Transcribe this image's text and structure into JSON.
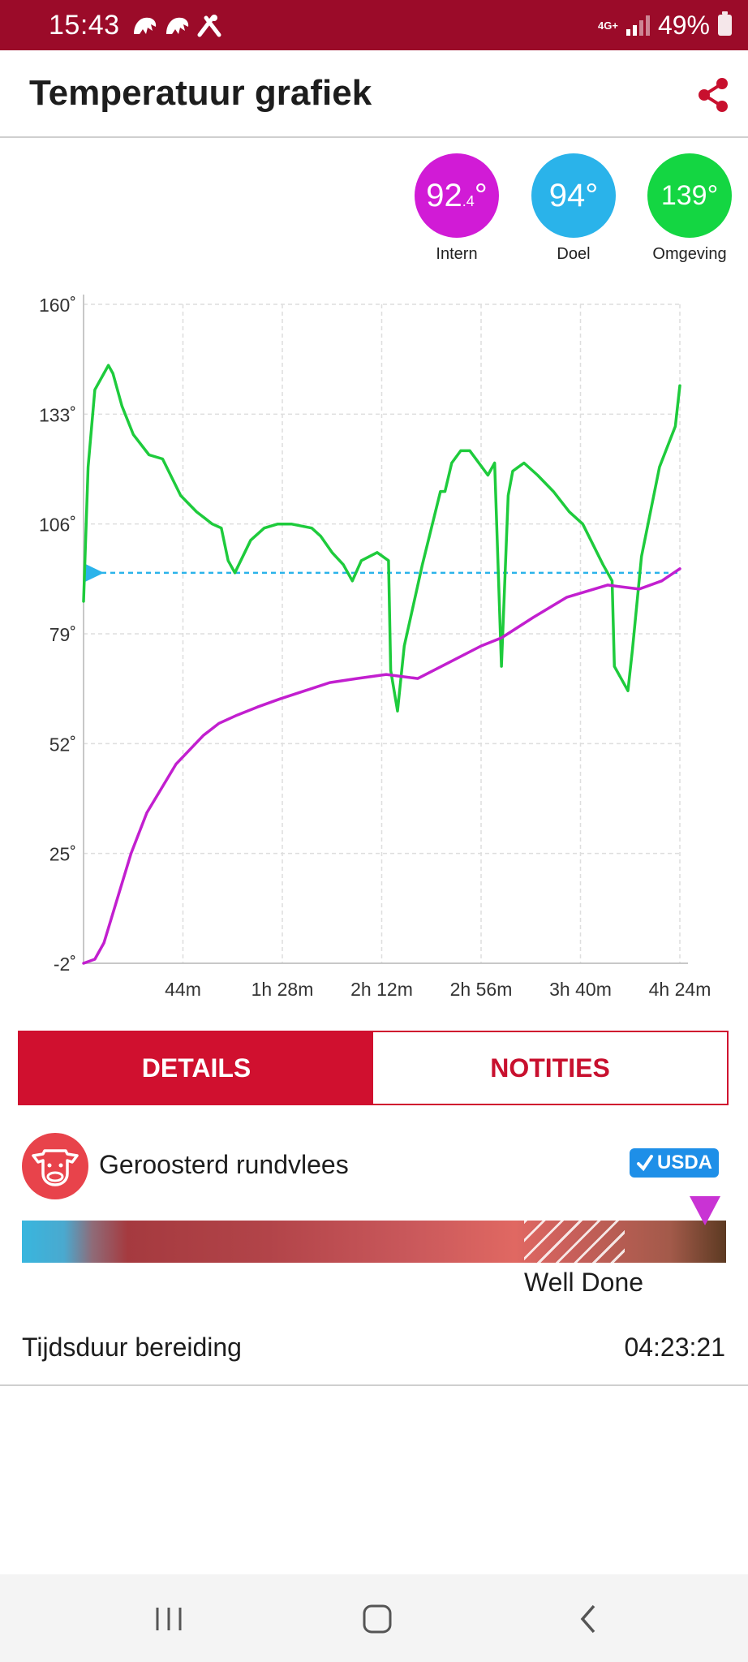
{
  "status_bar": {
    "time": "15:43",
    "network": "4G+",
    "battery": "49%",
    "bg_color": "#9b0b29"
  },
  "header": {
    "title": "Temperatuur grafiek",
    "share_icon": "share-icon",
    "accent": "#c8102e"
  },
  "readings": [
    {
      "main": "92",
      "sub": ".4",
      "unit": "°",
      "label": "Intern",
      "color": "#d11bd6"
    },
    {
      "main": "94",
      "sub": "",
      "unit": "°",
      "label": "Doel",
      "color": "#2ab3ea"
    },
    {
      "main": "139",
      "sub": "",
      "unit": "°",
      "label": "Omgeving",
      "color": "#14d642"
    }
  ],
  "chart_data": {
    "type": "line",
    "y_ticks": [
      "160˚",
      "133˚",
      "106˚",
      "79˚",
      "52˚",
      "25˚",
      "-2˚"
    ],
    "x_ticks": [
      "44m",
      "1h 28m",
      "2h 12m",
      "2h 56m",
      "3h 40m",
      "4h 24m"
    ],
    "ylim": [
      -2,
      160
    ],
    "xlim_min": [
      0,
      264
    ],
    "grid": true,
    "target_line": 94,
    "series": [
      {
        "color": "#1ecb3c",
        "points": [
          [
            0,
            87
          ],
          [
            2,
            120
          ],
          [
            5,
            139
          ],
          [
            11,
            145
          ],
          [
            13,
            143
          ],
          [
            17,
            135
          ],
          [
            22,
            128
          ],
          [
            29,
            123
          ],
          [
            35,
            122
          ],
          [
            43,
            113
          ],
          [
            50,
            109
          ],
          [
            57,
            106
          ],
          [
            61,
            105
          ],
          [
            64,
            97
          ],
          [
            67,
            94
          ],
          [
            74,
            102
          ],
          [
            80,
            105
          ],
          [
            86,
            106
          ],
          [
            92,
            106
          ],
          [
            101,
            105
          ],
          [
            105,
            103
          ],
          [
            110,
            99
          ],
          [
            115,
            96
          ],
          [
            119,
            92
          ],
          [
            123,
            97
          ],
          [
            130,
            99
          ],
          [
            135,
            97
          ],
          [
            136,
            70
          ],
          [
            139,
            60
          ],
          [
            142,
            76
          ],
          [
            150,
            96
          ],
          [
            158,
            114
          ],
          [
            160,
            114
          ],
          [
            163,
            121
          ],
          [
            167,
            124
          ],
          [
            171,
            124
          ],
          [
            179,
            118
          ],
          [
            182,
            121
          ],
          [
            185,
            71
          ],
          [
            188,
            113
          ],
          [
            190,
            119
          ],
          [
            195,
            121
          ],
          [
            201,
            118
          ],
          [
            208,
            114
          ],
          [
            215,
            109
          ],
          [
            221,
            106
          ],
          [
            230,
            96
          ],
          [
            234,
            92
          ],
          [
            235,
            71
          ],
          [
            241,
            65
          ],
          [
            243,
            75
          ],
          [
            247,
            98
          ],
          [
            255,
            120
          ],
          [
            262,
            130
          ],
          [
            264,
            140
          ]
        ]
      },
      {
        "color": "#c21fcf",
        "points": [
          [
            0,
            -2
          ],
          [
            5,
            -1
          ],
          [
            9,
            3
          ],
          [
            15,
            14
          ],
          [
            21,
            25
          ],
          [
            28,
            35
          ],
          [
            41,
            47
          ],
          [
            53,
            54
          ],
          [
            60,
            57
          ],
          [
            68,
            59
          ],
          [
            77,
            61
          ],
          [
            87,
            63
          ],
          [
            98,
            65
          ],
          [
            109,
            67
          ],
          [
            121,
            68
          ],
          [
            134,
            69
          ],
          [
            148,
            68
          ],
          [
            162,
            72
          ],
          [
            176,
            76
          ],
          [
            185,
            78
          ],
          [
            199,
            83
          ],
          [
            214,
            88
          ],
          [
            232,
            91
          ],
          [
            246,
            90
          ],
          [
            256,
            92
          ],
          [
            264,
            95
          ]
        ]
      }
    ]
  },
  "tabs": {
    "details": "DETAILS",
    "notes": "NOTITIES"
  },
  "meat": {
    "icon": "cow-icon",
    "name": "Geroosterd rundvlees",
    "badge": "USDA",
    "doneness": "Well Done"
  },
  "duration": {
    "label": "Tijdsduur bereiding",
    "value": "04:23:21"
  },
  "navigation": {
    "recents_icon": "recents-icon",
    "home_icon": "home-icon",
    "back_icon": "back-icon"
  }
}
